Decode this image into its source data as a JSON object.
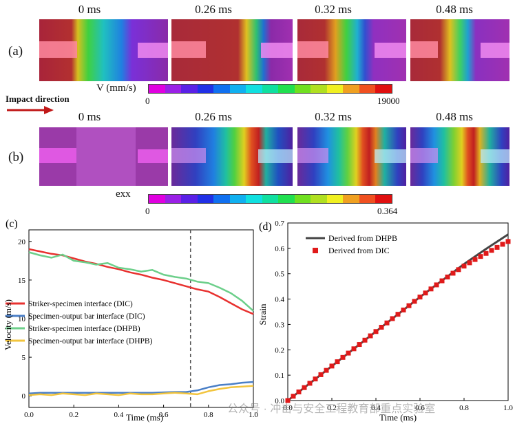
{
  "row_a": {
    "label": "(a)",
    "times": [
      "0 ms",
      "0.26 ms",
      "0.32 ms",
      "0.48 ms"
    ],
    "colorbar_label": "V (mm/s)",
    "colorbar_min": "0",
    "colorbar_max": "19000"
  },
  "row_b": {
    "label": "(b)",
    "times": [
      "0 ms",
      "0.26 ms",
      "0.32 ms",
      "0.48 ms"
    ],
    "colorbar_label": "exx",
    "colorbar_min": "0",
    "colorbar_max": "0.364"
  },
  "impact_direction": "Impact direction",
  "colorbar_colors": [
    "#e000e0",
    "#9a20e6",
    "#5a20e6",
    "#2030e6",
    "#1070f0",
    "#10b0f0",
    "#10e0e0",
    "#10e0a0",
    "#20e050",
    "#70e020",
    "#b0e020",
    "#f0f020",
    "#f0a020",
    "#f05020",
    "#e01010"
  ],
  "watermark": "公众号 · 冲击与安全工程教育部重点实验室",
  "chart_data": [
    {
      "panel": "(c)",
      "type": "line",
      "xlabel": "Time (ms)",
      "ylabel": "Velocity (m/s)",
      "xlim": [
        0.0,
        1.0
      ],
      "ylim": [
        -1.5,
        21.5
      ],
      "xticks": [
        0.0,
        0.2,
        0.4,
        0.6,
        0.8,
        1.0
      ],
      "xtick_labels": [
        "0.0",
        "0.2",
        "0.4",
        "0.6",
        "0.8",
        "1.0"
      ],
      "yticks": [
        0,
        5,
        10,
        15,
        20
      ],
      "ytick_labels": [
        "0",
        "5",
        "10",
        "15",
        "20"
      ],
      "vline_x": 0.72,
      "legend_position": "center-left",
      "series": [
        {
          "name": "Striker-specimen interface (DIC)",
          "color": "#e8312f",
          "x": [
            0.0,
            0.05,
            0.1,
            0.15,
            0.2,
            0.25,
            0.3,
            0.35,
            0.4,
            0.45,
            0.5,
            0.55,
            0.6,
            0.65,
            0.7,
            0.75,
            0.8,
            0.85,
            0.9,
            0.95,
            1.0
          ],
          "y": [
            19.0,
            18.7,
            18.4,
            18.2,
            17.8,
            17.4,
            17.1,
            16.7,
            16.4,
            16.0,
            15.7,
            15.3,
            15.0,
            14.6,
            14.2,
            13.8,
            13.5,
            12.8,
            12.0,
            11.2,
            10.6
          ]
        },
        {
          "name": "Specimen-output bar interface (DIC)",
          "color": "#4a7fc7",
          "x": [
            0.0,
            0.05,
            0.1,
            0.15,
            0.2,
            0.25,
            0.3,
            0.35,
            0.4,
            0.45,
            0.5,
            0.55,
            0.6,
            0.65,
            0.7,
            0.75,
            0.8,
            0.85,
            0.9,
            0.95,
            1.0
          ],
          "y": [
            0.3,
            0.4,
            0.4,
            0.4,
            0.4,
            0.4,
            0.4,
            0.4,
            0.4,
            0.4,
            0.4,
            0.4,
            0.45,
            0.5,
            0.5,
            0.7,
            1.1,
            1.4,
            1.5,
            1.7,
            1.8
          ]
        },
        {
          "name": "Striker-specimen interface (DHPB)",
          "color": "#6ccf8a",
          "x": [
            0.0,
            0.05,
            0.1,
            0.15,
            0.2,
            0.25,
            0.3,
            0.35,
            0.4,
            0.45,
            0.5,
            0.55,
            0.6,
            0.65,
            0.7,
            0.75,
            0.8,
            0.85,
            0.9,
            0.95,
            1.0
          ],
          "y": [
            18.6,
            18.2,
            17.9,
            18.3,
            17.5,
            17.3,
            17.0,
            17.2,
            16.6,
            16.4,
            16.1,
            16.3,
            15.7,
            15.4,
            15.2,
            14.8,
            14.6,
            14.0,
            13.3,
            12.3,
            11.0
          ]
        },
        {
          "name": "Specimen-output bar interface (DHPB)",
          "color": "#f2c43d",
          "x": [
            0.0,
            0.05,
            0.1,
            0.15,
            0.2,
            0.25,
            0.3,
            0.35,
            0.4,
            0.45,
            0.5,
            0.55,
            0.6,
            0.65,
            0.7,
            0.75,
            0.8,
            0.85,
            0.9,
            0.95,
            1.0
          ],
          "y": [
            0.1,
            0.2,
            0.1,
            0.3,
            0.2,
            0.1,
            0.3,
            0.2,
            0.1,
            0.3,
            0.2,
            0.2,
            0.3,
            0.4,
            0.3,
            0.2,
            0.6,
            0.9,
            1.1,
            1.2,
            1.3
          ]
        }
      ]
    },
    {
      "panel": "(d)",
      "type": "line",
      "xlabel": "Time (ms)",
      "ylabel": "Strain",
      "xlim": [
        0.0,
        1.0
      ],
      "ylim": [
        0.0,
        0.7
      ],
      "xticks": [
        0.0,
        0.2,
        0.4,
        0.6,
        0.8,
        1.0
      ],
      "xtick_labels": [
        "0.0",
        "0.2",
        "0.4",
        "0.6",
        "0.8",
        "1.0"
      ],
      "yticks": [
        0.0,
        0.1,
        0.2,
        0.3,
        0.4,
        0.5,
        0.6,
        0.7
      ],
      "ytick_labels": [
        "0.0",
        "0.1",
        "0.2",
        "0.3",
        "0.4",
        "0.5",
        "0.6",
        "0.7"
      ],
      "legend_position": "top-left",
      "series": [
        {
          "name": "Derived from DHPB",
          "color": "#444444",
          "style": "line",
          "x": [
            0.0,
            0.1,
            0.2,
            0.3,
            0.4,
            0.5,
            0.6,
            0.7,
            0.8,
            0.9,
            1.0
          ],
          "y": [
            0.0,
            0.068,
            0.136,
            0.204,
            0.272,
            0.34,
            0.408,
            0.473,
            0.538,
            0.598,
            0.655
          ]
        },
        {
          "name": "Derived from DIC",
          "color": "#e01a1a",
          "style": "markers",
          "x": [
            0.0,
            0.025,
            0.05,
            0.075,
            0.1,
            0.125,
            0.15,
            0.175,
            0.2,
            0.225,
            0.25,
            0.275,
            0.3,
            0.325,
            0.35,
            0.375,
            0.4,
            0.425,
            0.45,
            0.475,
            0.5,
            0.525,
            0.55,
            0.575,
            0.6,
            0.625,
            0.65,
            0.675,
            0.7,
            0.725,
            0.75,
            0.775,
            0.8,
            0.825,
            0.85,
            0.875,
            0.9,
            0.925,
            0.95,
            0.975,
            1.0
          ],
          "y": [
            0.0,
            0.017,
            0.034,
            0.051,
            0.068,
            0.085,
            0.102,
            0.119,
            0.136,
            0.153,
            0.17,
            0.187,
            0.204,
            0.221,
            0.238,
            0.255,
            0.272,
            0.289,
            0.306,
            0.323,
            0.34,
            0.357,
            0.374,
            0.391,
            0.408,
            0.424,
            0.44,
            0.456,
            0.472,
            0.487,
            0.502,
            0.516,
            0.53,
            0.543,
            0.556,
            0.568,
            0.58,
            0.592,
            0.604,
            0.616,
            0.627
          ]
        }
      ]
    }
  ]
}
